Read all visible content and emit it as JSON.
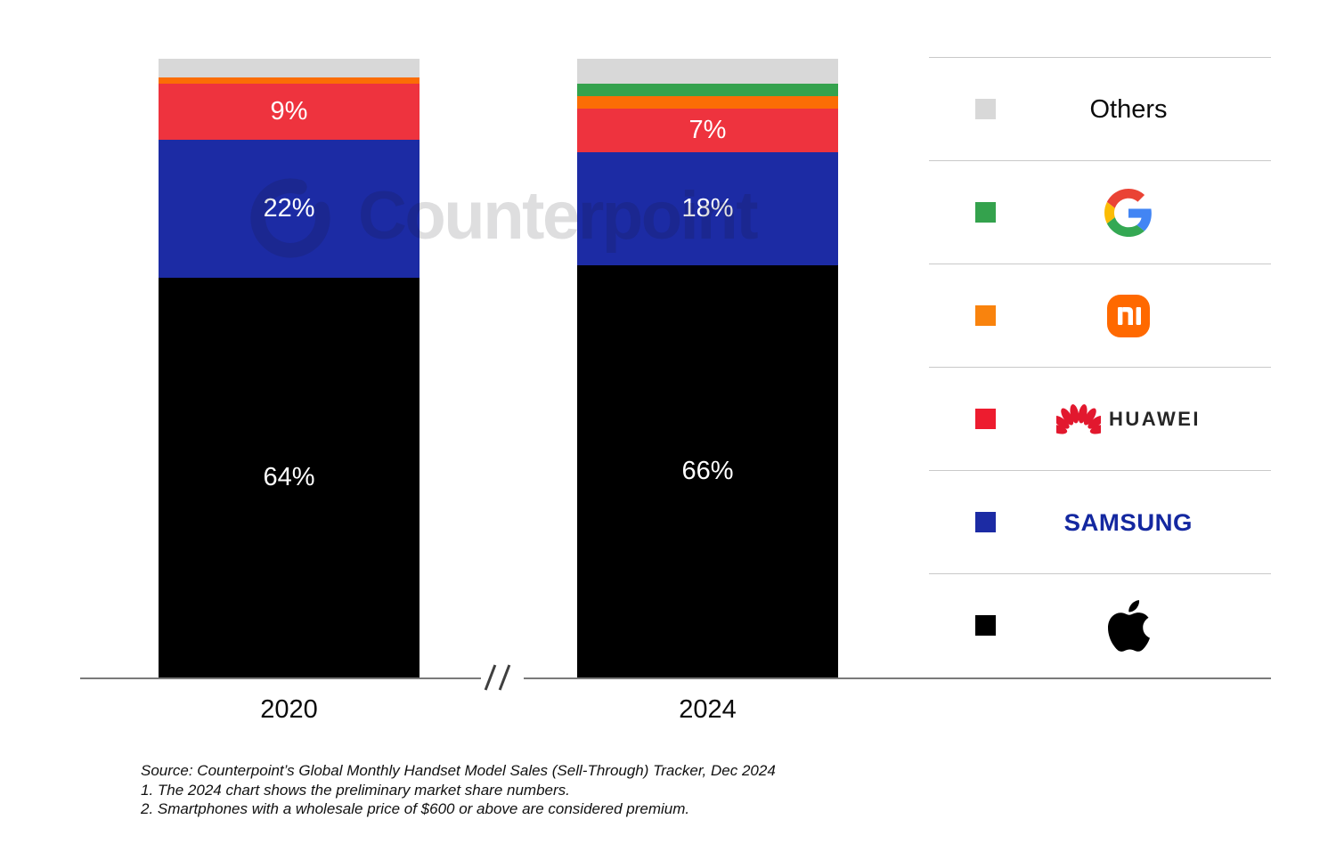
{
  "watermark": {
    "text": "Counterpoint"
  },
  "chart_data": {
    "type": "bar",
    "variant": "stacked-100-percent",
    "title": "",
    "categories": [
      "2020",
      "2024"
    ],
    "unit": "%",
    "ylim": [
      0,
      100
    ],
    "grid": false,
    "legend_position": "right",
    "x_axis_break_symbol": "//",
    "series": [
      {
        "name": "Apple",
        "color": "#000000",
        "values": [
          64,
          66
        ],
        "labels": [
          "64%",
          "66%"
        ]
      },
      {
        "name": "Samsung",
        "color": "#1c2ba4",
        "values": [
          22,
          18
        ],
        "labels": [
          "22%",
          "18%"
        ]
      },
      {
        "name": "Huawei",
        "color": "#ee333e",
        "values": [
          9,
          7
        ],
        "labels": [
          "9%",
          "7%"
        ]
      },
      {
        "name": "Xiaomi",
        "color": "#fb6d05",
        "values": [
          1,
          2
        ],
        "labels": [
          "",
          ""
        ]
      },
      {
        "name": "Google",
        "color": "#34a24d",
        "values": [
          0,
          2
        ],
        "labels": [
          "",
          ""
        ]
      },
      {
        "name": "Others",
        "color": "#d8d8d8",
        "values": [
          3,
          4
        ],
        "labels": [
          "",
          ""
        ]
      }
    ],
    "value_label_color": "#ffffff"
  },
  "legend": {
    "rows": [
      {
        "brand": "Others",
        "label": "Others",
        "swatch_color": "#d8d8d8"
      },
      {
        "brand": "Google",
        "label": "",
        "swatch_color": "#34a24d"
      },
      {
        "brand": "Xiaomi",
        "label": "",
        "swatch_color": "#f9830d"
      },
      {
        "brand": "Huawei",
        "label": "HUAWEI",
        "swatch_color": "#ed1c2f"
      },
      {
        "brand": "Samsung",
        "label": "SAMSUNG",
        "swatch_color": "#1c2ba4"
      },
      {
        "brand": "Apple",
        "label": "",
        "swatch_color": "#000000"
      }
    ]
  },
  "footnotes": {
    "source": "Source: Counterpoint’s Global Monthly Handset Model Sales (Sell-Through) Tracker, Dec 2024",
    "note1": "1. The 2024 chart shows the preliminary market share numbers.",
    "note2": "2. Smartphones with a wholesale price of $600 or above are considered premium."
  },
  "axis": {
    "line_color": "#7a7a7a",
    "separator_color": "#c9c9c9"
  }
}
